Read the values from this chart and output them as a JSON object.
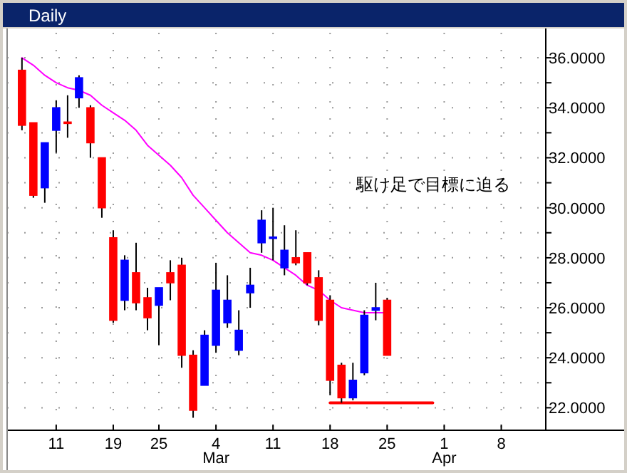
{
  "chart_data": {
    "type": "candlestick",
    "title": "Daily",
    "categories": [
      null,
      null,
      null,
      "11",
      null,
      null,
      null,
      null,
      "19",
      null,
      null,
      null,
      "25",
      null,
      null,
      null,
      null,
      "4\nMar",
      null,
      null,
      null,
      null,
      "11",
      null,
      null,
      null,
      null,
      "18",
      null,
      null,
      null,
      null,
      "25",
      null,
      null,
      null,
      null,
      "1\nApr",
      null,
      null,
      null,
      null,
      "8",
      null,
      null,
      null
    ],
    "ohlc": [
      [
        35.5,
        36.0,
        33.1,
        33.3
      ],
      [
        33.4,
        33.4,
        30.4,
        30.5
      ],
      [
        30.8,
        32.6,
        30.2,
        32.6
      ],
      [
        33.1,
        34.3,
        32.2,
        34.0
      ],
      [
        33.4,
        34.5,
        32.8,
        33.4
      ],
      [
        34.4,
        35.3,
        34.0,
        35.2
      ],
      [
        34.0,
        34.1,
        32.0,
        32.6
      ],
      [
        32.0,
        32.0,
        29.6,
        30.0
      ],
      [
        28.8,
        29.1,
        25.4,
        25.5
      ],
      [
        26.3,
        28.1,
        25.9,
        27.9
      ],
      [
        27.4,
        28.6,
        25.9,
        26.2
      ],
      [
        26.4,
        26.8,
        25.1,
        25.6
      ],
      [
        26.1,
        26.8,
        24.5,
        26.8
      ],
      [
        27.4,
        27.9,
        26.3,
        27.0
      ],
      [
        27.7,
        28.0,
        23.6,
        24.1
      ],
      [
        24.1,
        24.3,
        21.6,
        21.9
      ],
      [
        22.9,
        25.1,
        22.9,
        24.9
      ],
      [
        24.5,
        27.8,
        24.2,
        26.7
      ],
      [
        25.4,
        27.3,
        25.2,
        26.3
      ],
      [
        24.3,
        25.9,
        24.1,
        25.1
      ],
      [
        26.6,
        27.6,
        26.0,
        26.9
      ],
      [
        28.6,
        29.9,
        28.2,
        29.5
      ],
      [
        28.8,
        30.0,
        27.9,
        28.8
      ],
      [
        27.6,
        29.3,
        27.3,
        28.3
      ],
      [
        28.0,
        29.1,
        27.7,
        27.8
      ],
      [
        28.2,
        28.2,
        26.9,
        27.0
      ],
      [
        27.2,
        27.5,
        25.3,
        25.5
      ],
      [
        26.3,
        26.5,
        22.5,
        23.1
      ],
      [
        23.7,
        23.8,
        22.2,
        22.4
      ],
      [
        22.4,
        23.8,
        22.3,
        23.1
      ],
      [
        23.4,
        25.9,
        23.3,
        25.7
      ],
      [
        25.9,
        27.0,
        25.5,
        26.0
      ],
      [
        26.3,
        26.4,
        24.1,
        24.1
      ],
      null,
      null,
      null,
      null,
      null,
      null,
      null,
      null,
      null,
      null,
      null,
      null,
      null
    ],
    "colors": [
      "#ff0000",
      "#ff0000",
      "#0000ff",
      "#0000ff",
      "#ff0000",
      "#0000ff",
      "#ff0000",
      "#ff0000",
      "#ff0000",
      "#0000ff",
      "#ff0000",
      "#ff0000",
      "#0000ff",
      "#ff0000",
      "#ff0000",
      "#ff0000",
      "#0000ff",
      "#0000ff",
      "#0000ff",
      "#0000ff",
      "#0000ff",
      "#0000ff",
      "#0000ff",
      "#0000ff",
      "#ff0000",
      "#ff0000",
      "#ff0000",
      "#ff0000",
      "#ff0000",
      "#0000ff",
      "#0000ff",
      "#0000ff",
      "#ff0000",
      null,
      null,
      null,
      null,
      null,
      null,
      null,
      null,
      null,
      null,
      null,
      null,
      null
    ],
    "series": [
      {
        "type": "line",
        "color": "#ff00ff",
        "values": [
          36.0,
          35.7,
          35.3,
          35.0,
          34.8,
          34.7,
          34.5,
          34.1,
          33.8,
          33.5,
          33.1,
          32.5,
          32.1,
          31.7,
          31.2,
          30.5,
          30.0,
          29.5,
          29.0,
          28.6,
          28.2,
          28.1,
          27.9,
          27.6,
          27.3,
          26.9,
          26.7,
          26.3,
          26.0,
          25.9,
          25.8,
          25.8,
          25.8,
          null,
          null,
          null,
          null,
          null,
          null,
          null,
          null,
          null,
          null,
          null,
          null,
          null
        ]
      },
      {
        "type": "line",
        "color": "#ff0000",
        "values": [
          null,
          null,
          null,
          null,
          null,
          null,
          null,
          null,
          null,
          null,
          null,
          null,
          null,
          null,
          null,
          null,
          null,
          null,
          null,
          null,
          null,
          null,
          null,
          null,
          null,
          null,
          null,
          22.2,
          22.2,
          22.2,
          22.2,
          22.2,
          22.2,
          22.2,
          22.2,
          22.2,
          22.2,
          null,
          null,
          null,
          null,
          null,
          null,
          null,
          null,
          null
        ]
      }
    ],
    "ylim": [
      21.1,
      37.0
    ],
    "yticks": [
      {
        "value": 22,
        "label": "22.0000"
      },
      {
        "value": 23,
        "label": null
      },
      {
        "value": 24,
        "label": "24.0000"
      },
      {
        "value": 25,
        "label": null
      },
      {
        "value": 26,
        "label": "26.0000"
      },
      {
        "value": 27,
        "label": null
      },
      {
        "value": 28,
        "label": "28.0000"
      },
      {
        "value": 29,
        "label": null
      },
      {
        "value": 30,
        "label": "30.0000"
      },
      {
        "value": 31,
        "label": null
      },
      {
        "value": 32,
        "label": "32.0000"
      },
      {
        "value": 33,
        "label": null
      },
      {
        "value": 34,
        "label": "34.0000"
      },
      {
        "value": 35,
        "label": null
      },
      {
        "value": 36,
        "label": "36.0000"
      }
    ],
    "grid": true,
    "annotations": [
      "駆け足で目標に迫る"
    ]
  }
}
